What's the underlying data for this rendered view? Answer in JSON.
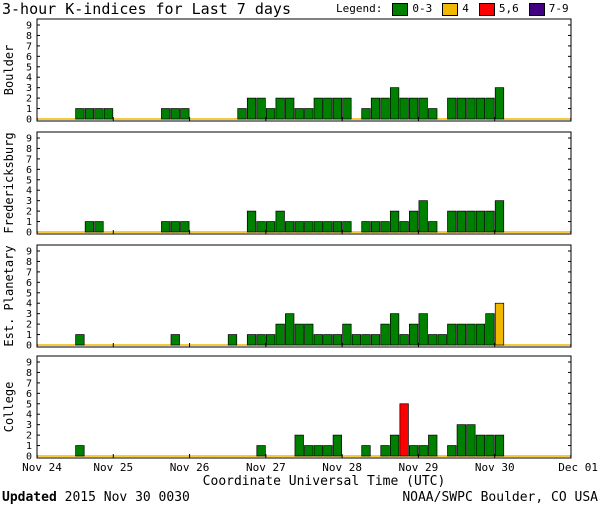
{
  "title": "3-hour K-indices for Last 7 days",
  "legend": {
    "title": "Legend:",
    "items": [
      {
        "label": "0-3",
        "color": "#008000"
      },
      {
        "label": "4",
        "color": "#f0b800"
      },
      {
        "label": "5,6",
        "color": "#ff0000"
      },
      {
        "label": "7-9",
        "color": "#400080"
      }
    ]
  },
  "chart_data": {
    "type": "bar",
    "xlabel": "Coordinate Universal Time (UTC)",
    "x_ticks": [
      "Nov 24",
      "Nov 25",
      "Nov 26",
      "Nov 27",
      "Nov 28",
      "Nov 29",
      "Nov 30",
      "Dec 01"
    ],
    "ylim": [
      0,
      9
    ],
    "y_ticks": [
      "0",
      "1",
      "2",
      "3",
      "4",
      "5",
      "6",
      "7",
      "8",
      "9"
    ],
    "bars_per_day": 8,
    "panels": [
      {
        "name": "Boulder",
        "values": [
          0,
          0,
          0,
          0,
          1,
          1,
          1,
          1,
          0,
          0,
          0,
          0,
          0,
          1,
          1,
          1,
          0,
          0,
          0,
          0,
          0,
          1,
          2,
          2,
          1,
          2,
          2,
          1,
          1,
          2,
          2,
          2,
          2,
          0,
          1,
          2,
          2,
          3,
          2,
          2,
          2,
          1,
          0,
          2,
          2,
          2,
          2,
          2,
          3
        ]
      },
      {
        "name": "Fredericksburg",
        "values": [
          0,
          0,
          0,
          0,
          0,
          1,
          1,
          0,
          0,
          0,
          0,
          0,
          0,
          1,
          1,
          1,
          0,
          0,
          0,
          0,
          0,
          0,
          2,
          1,
          1,
          2,
          1,
          1,
          1,
          1,
          1,
          1,
          1,
          0,
          1,
          1,
          1,
          2,
          1,
          2,
          3,
          1,
          0,
          2,
          2,
          2,
          2,
          2,
          3
        ]
      },
      {
        "name": "Est. Planetary",
        "values": [
          0,
          0,
          0,
          0,
          1,
          0,
          0,
          0,
          0,
          0,
          0,
          0,
          0,
          0,
          1,
          0,
          0,
          0,
          0,
          0,
          1,
          0,
          1,
          1,
          1,
          2,
          3,
          2,
          2,
          1,
          1,
          1,
          2,
          1,
          1,
          1,
          2,
          3,
          1,
          2,
          3,
          1,
          1,
          2,
          2,
          2,
          2,
          3,
          4
        ]
      },
      {
        "name": "College",
        "values": [
          0,
          0,
          0,
          0,
          1,
          0,
          0,
          0,
          0,
          0,
          0,
          0,
          0,
          0,
          0,
          0,
          0,
          0,
          0,
          0,
          0,
          0,
          0,
          1,
          0,
          0,
          0,
          2,
          1,
          1,
          1,
          2,
          0,
          0,
          1,
          0,
          1,
          2,
          5,
          1,
          1,
          2,
          0,
          1,
          3,
          3,
          2,
          2,
          2
        ]
      }
    ]
  },
  "footer": {
    "updated_label": "Updated",
    "updated_value": "2015 Nov 30 0030",
    "credit": "NOAA/SWPC Boulder, CO USA"
  }
}
